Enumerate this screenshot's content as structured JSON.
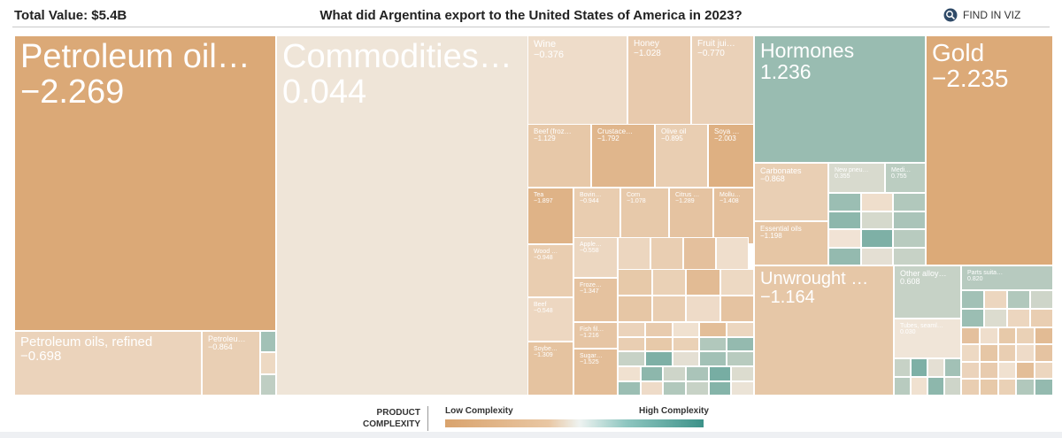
{
  "header": {
    "total_value": "Total Value: $5.4B",
    "title": "What did Argentina export to the United States of America in 2023?",
    "find_label": "FIND IN VIZ",
    "find_icon": "search-icon"
  },
  "legend": {
    "title_line1": "PRODUCT",
    "title_line2": "COMPLEXITY",
    "low_label": "Low Complexity",
    "high_label": "High Complexity"
  },
  "chart_data": {
    "type": "treemap",
    "title": "What did Argentina export to the United States of America in 2023?",
    "total": "$5.4B",
    "color_metric": "Product Complexity Index",
    "color_scale": {
      "min": -2.5,
      "max": 2.5,
      "low_color": "#d9a36d",
      "high_color": "#3d9289"
    },
    "items": [
      {
        "name": "Petroleum oil…",
        "value": "−2.269",
        "pci": -2.269
      },
      {
        "name": "Commodities…",
        "value": "0.044",
        "pci": 0.044
      },
      {
        "name": "Hormones",
        "value": "1.236",
        "pci": 1.236
      },
      {
        "name": "Gold",
        "value": "−2.235",
        "pci": -2.235
      },
      {
        "name": "Unwrought …",
        "value": "−1.164",
        "pci": -1.164
      },
      {
        "name": "Petroleum oils, refined",
        "value": "−0.698",
        "pci": -0.698
      },
      {
        "name": "Petroleu…",
        "value": "−0.864",
        "pci": -0.864
      },
      {
        "name": "Wine",
        "value": "−0.376",
        "pci": -0.376
      },
      {
        "name": "Honey",
        "value": "−1.028",
        "pci": -1.028
      },
      {
        "name": "Fruit jui…",
        "value": "−0.770",
        "pci": -0.77
      },
      {
        "name": "Beef (froz…",
        "value": "−1.129",
        "pci": -1.129
      },
      {
        "name": "Crustace…",
        "value": "−1.792",
        "pci": -1.792
      },
      {
        "name": "Olive oil",
        "value": "−0.895",
        "pci": -0.895
      },
      {
        "name": "Soya …",
        "value": "−2.003",
        "pci": -2.003
      },
      {
        "name": "Tea",
        "value": "−1.897",
        "pci": -1.897
      },
      {
        "name": "Bovin…",
        "value": "−0.944",
        "pci": -0.944
      },
      {
        "name": "Corn",
        "value": "−1.078",
        "pci": -1.078
      },
      {
        "name": "Citrus …",
        "value": "−1.289",
        "pci": -1.289
      },
      {
        "name": "Mollu…",
        "value": "−1.408",
        "pci": -1.408
      },
      {
        "name": "Wood …",
        "value": "−0.948",
        "pci": -0.948
      },
      {
        "name": "Apple…",
        "value": "−0.558",
        "pci": -0.558
      },
      {
        "name": "Pean…",
        "value": "−1.526",
        "pci": -1.526
      },
      {
        "name": "Froze…",
        "value": "−1.347",
        "pci": -1.347
      },
      {
        "name": "Beef",
        "value": "−0.548",
        "pci": -0.548
      },
      {
        "name": "Fish fil…",
        "value": "−1.216",
        "pci": -1.216
      },
      {
        "name": "Soybe…",
        "value": "−1.309",
        "pci": -1.309
      },
      {
        "name": "Sugar…",
        "value": "−1.525",
        "pci": -1.525
      },
      {
        "name": "Carbonates",
        "value": "−0.868",
        "pci": -0.868
      },
      {
        "name": "New pneu…",
        "value": "0.355",
        "pci": 0.355
      },
      {
        "name": "Medi…",
        "value": "0.755",
        "pci": 0.755
      },
      {
        "name": "Essential oils",
        "value": "−1.198",
        "pci": -1.198
      },
      {
        "name": "Other alloy…",
        "value": "0.608",
        "pci": 0.608
      },
      {
        "name": "Parts suita…",
        "value": "0.820",
        "pci": 0.82
      },
      {
        "name": "Tubes, seaml…",
        "value": "0.030",
        "pci": 0.03
      }
    ],
    "unlabeled_pci": [
      -0.6,
      -0.9,
      -1.4,
      -0.3,
      -1.1,
      -0.8,
      -1.6,
      -0.5,
      -1.2,
      -0.9,
      -0.4,
      -1.3,
      -0.7,
      -1.0,
      -0.2,
      -1.5,
      -0.6,
      -0.9,
      -1.1,
      -0.8,
      0.9,
      1.3,
      0.6,
      1.6,
      0.2,
      1.1,
      0.8,
      -0.2,
      1.4,
      0.5,
      1.0,
      1.7,
      0.3,
      1.2,
      -0.4,
      0.9,
      0.6,
      1.5,
      0.1,
      1.1,
      -0.5,
      0.7,
      1.2,
      -0.3,
      0.9,
      1.4,
      0.4,
      1.0,
      -0.1,
      1.6,
      0.8,
      1.3,
      0.2,
      0.6,
      1.1,
      -0.6,
      0.9,
      0.5,
      1.2,
      0.3
    ]
  }
}
